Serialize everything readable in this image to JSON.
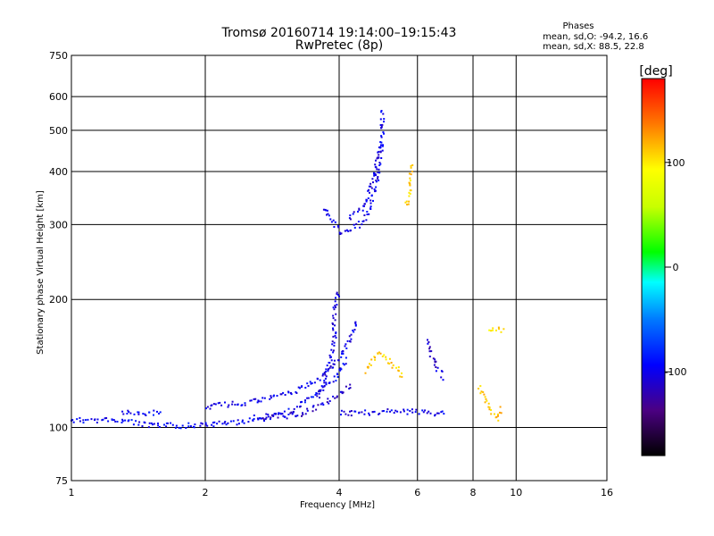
{
  "chart_data": {
    "type": "scatter",
    "title": "Tromsø 20160714 19:14:00–19:15:43",
    "subtitle": "RwPretec (8p)",
    "xlabel": "Frequency [MHz]",
    "ylabel": "Stationary phase Virtual Height [km]",
    "x_scale": "log",
    "y_scale": "log",
    "xlim": [
      1,
      16
    ],
    "ylim": [
      75,
      750
    ],
    "x_ticks": [
      1,
      2,
      4,
      6,
      8,
      10,
      16
    ],
    "y_ticks": [
      75,
      100,
      200,
      300,
      400,
      500,
      600,
      750
    ],
    "x_ticklabels": [
      "1",
      "2",
      "4",
      "6",
      "8",
      "10",
      "16"
    ],
    "y_ticklabels": [
      "75",
      "100",
      "200",
      "300",
      "400",
      "500",
      "600",
      "750"
    ],
    "grid": true,
    "stats": {
      "header": "Phases",
      "lines": [
        "mean, sd,O: -94.2, 16.6",
        "mean, sd,X:  88.5, 22.8"
      ]
    },
    "colorbar": {
      "label": "[deg]",
      "range": [
        -180,
        180
      ],
      "ticks": [
        -100,
        0,
        100
      ],
      "ticklabels": [
        "-100",
        "0",
        "100"
      ]
    },
    "traces": [
      {
        "points": [
          [
            1.0,
            104
          ],
          [
            1.3,
            104
          ],
          [
            1.5,
            101
          ],
          [
            1.8,
            101
          ],
          [
            2.2,
            102
          ],
          [
            2.7,
            105
          ],
          [
            3.1,
            109
          ],
          [
            3.5,
            118
          ],
          [
            3.9,
            130
          ],
          [
            4.2,
            145
          ]
        ],
        "phase": -95
      },
      {
        "points": [
          [
            1.3,
            108
          ],
          [
            1.6,
            108
          ]
        ],
        "phase": -95
      },
      {
        "points": [
          [
            2.0,
            112
          ],
          [
            2.4,
            114
          ],
          [
            2.8,
            117
          ],
          [
            3.2,
            122
          ],
          [
            3.6,
            130
          ],
          [
            3.9,
            140
          ],
          [
            4.2,
            158
          ],
          [
            4.4,
            180
          ]
        ],
        "phase": -100
      },
      {
        "points": [
          [
            2.6,
            106
          ],
          [
            3.0,
            106
          ],
          [
            3.3,
            108
          ],
          [
            3.6,
            112
          ],
          [
            3.9,
            118
          ],
          [
            4.3,
            126
          ]
        ],
        "phase": -110
      },
      {
        "points": [
          [
            3.6,
            118
          ],
          [
            3.8,
            140
          ],
          [
            3.9,
            160
          ],
          [
            3.9,
            185
          ],
          [
            4.0,
            210
          ]
        ],
        "phase": -105
      },
      {
        "points": [
          [
            4.0,
            108
          ],
          [
            4.5,
            108
          ],
          [
            5.0,
            109
          ],
          [
            5.5,
            109
          ],
          [
            6.0,
            109
          ],
          [
            6.5,
            108
          ],
          [
            7.0,
            108
          ]
        ],
        "phase": -100
      },
      {
        "points": [
          [
            3.7,
            330
          ],
          [
            3.9,
            300
          ],
          [
            4.05,
            285
          ],
          [
            4.25,
            290
          ],
          [
            4.5,
            303
          ],
          [
            4.7,
            330
          ],
          [
            4.85,
            370
          ],
          [
            4.95,
            430
          ],
          [
            5.0,
            490
          ],
          [
            5.0,
            560
          ]
        ],
        "phase": -100
      },
      {
        "points": [
          [
            4.2,
            310
          ],
          [
            4.5,
            325
          ],
          [
            4.7,
            360
          ],
          [
            4.85,
            410
          ],
          [
            4.95,
            470
          ]
        ],
        "phase": -105
      },
      {
        "points": [
          [
            4.6,
            135
          ],
          [
            4.8,
            145
          ],
          [
            5.0,
            150
          ],
          [
            5.3,
            140
          ],
          [
            5.6,
            130
          ]
        ],
        "phase": 110
      },
      {
        "points": [
          [
            5.65,
            330
          ],
          [
            5.75,
            355
          ],
          [
            5.8,
            380
          ],
          [
            5.8,
            420
          ]
        ],
        "phase": 110
      },
      {
        "points": [
          [
            6.3,
            160
          ],
          [
            6.6,
            140
          ],
          [
            6.9,
            130
          ]
        ],
        "phase": -110
      },
      {
        "points": [
          [
            8.3,
            125
          ],
          [
            8.7,
            110
          ],
          [
            9.1,
            105
          ],
          [
            9.3,
            112
          ]
        ],
        "phase": 115
      },
      {
        "points": [
          [
            8.7,
            170
          ],
          [
            9.1,
            172
          ],
          [
            9.4,
            168
          ]
        ],
        "phase": 105
      }
    ]
  }
}
